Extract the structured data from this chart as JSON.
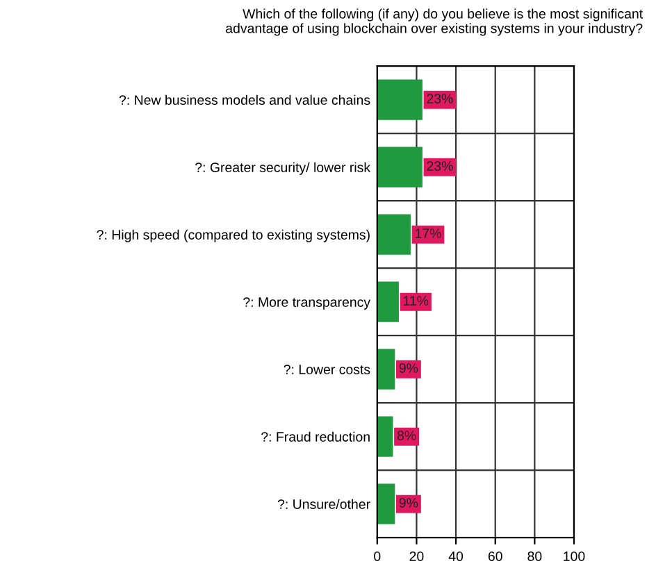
{
  "chart_data": {
    "type": "bar",
    "orientation": "horizontal",
    "title": "Which of the following (if any) do you believe is the most significant\nadvantage of using blockchain over existing systems in your industry?",
    "categories": [
      "?: New business models and value chains",
      "?: Greater security/ lower risk",
      "?: High speed (compared to existing systems)",
      "?: More transparency",
      "?: Lower costs",
      "?: Fraud reduction",
      "?: Unsure/other"
    ],
    "values": [
      23,
      23,
      17,
      11,
      9,
      8,
      9
    ],
    "value_labels": [
      "23%",
      "23%",
      "17%",
      "11%",
      "9%",
      "8%",
      "9%"
    ],
    "color": "#1f9a3e",
    "xlim": [
      0,
      100
    ],
    "xticks": [
      0,
      20,
      40,
      60,
      80,
      100
    ],
    "grid": "x"
  }
}
